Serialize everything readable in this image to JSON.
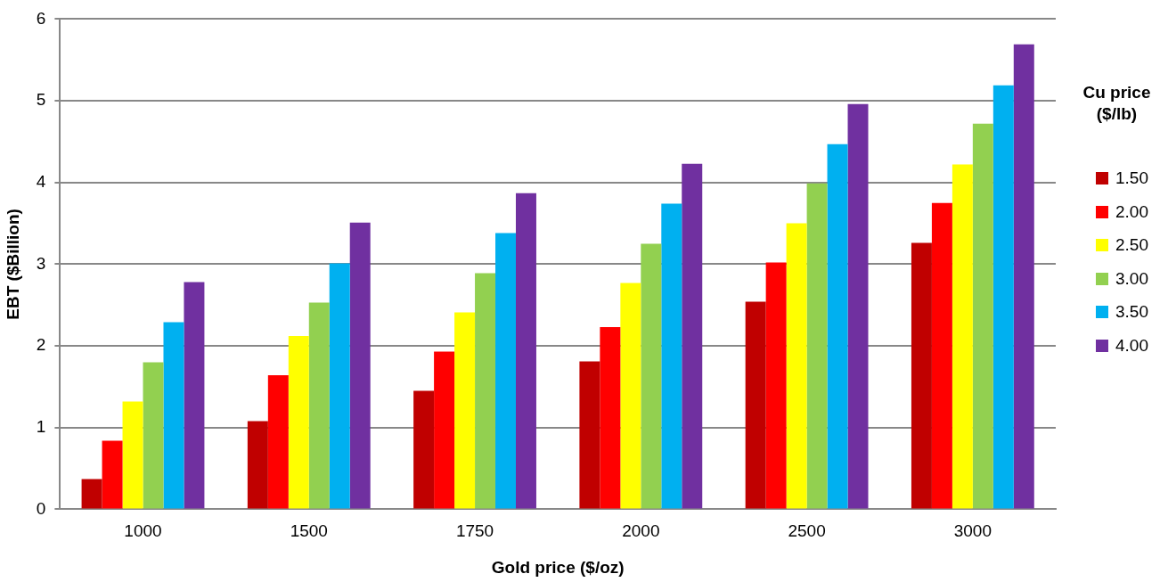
{
  "chart_data": {
    "type": "bar",
    "xlabel": "Gold price ($/oz)",
    "ylabel": "EBT ($Billion)",
    "legend_title": "Cu price ($/lb)",
    "legend": "right",
    "categories": [
      "1000",
      "1500",
      "1750",
      "2000",
      "2500",
      "3000"
    ],
    "series": [
      {
        "name": "1.50",
        "color": "#c00000",
        "values": [
          0.37,
          1.08,
          1.45,
          1.81,
          2.54,
          3.26
        ]
      },
      {
        "name": "2.00",
        "color": "#ff0000",
        "values": [
          0.84,
          1.64,
          1.93,
          2.23,
          3.02,
          3.75
        ]
      },
      {
        "name": "2.50",
        "color": "#ffff00",
        "values": [
          1.32,
          2.12,
          2.41,
          2.77,
          3.5,
          4.22
        ]
      },
      {
        "name": "3.00",
        "color": "#92d050",
        "values": [
          1.8,
          2.53,
          2.89,
          3.25,
          3.99,
          4.72
        ]
      },
      {
        "name": "3.50",
        "color": "#00b0f0",
        "values": [
          2.29,
          3.01,
          3.38,
          3.74,
          4.47,
          5.19
        ]
      },
      {
        "name": "4.00",
        "color": "#7030a0",
        "values": [
          2.78,
          3.51,
          3.87,
          4.23,
          4.96,
          5.69
        ]
      }
    ],
    "ylim": [
      0,
      6
    ],
    "yticks": [
      0,
      1,
      2,
      3,
      4,
      5,
      6
    ],
    "grid": "y"
  }
}
